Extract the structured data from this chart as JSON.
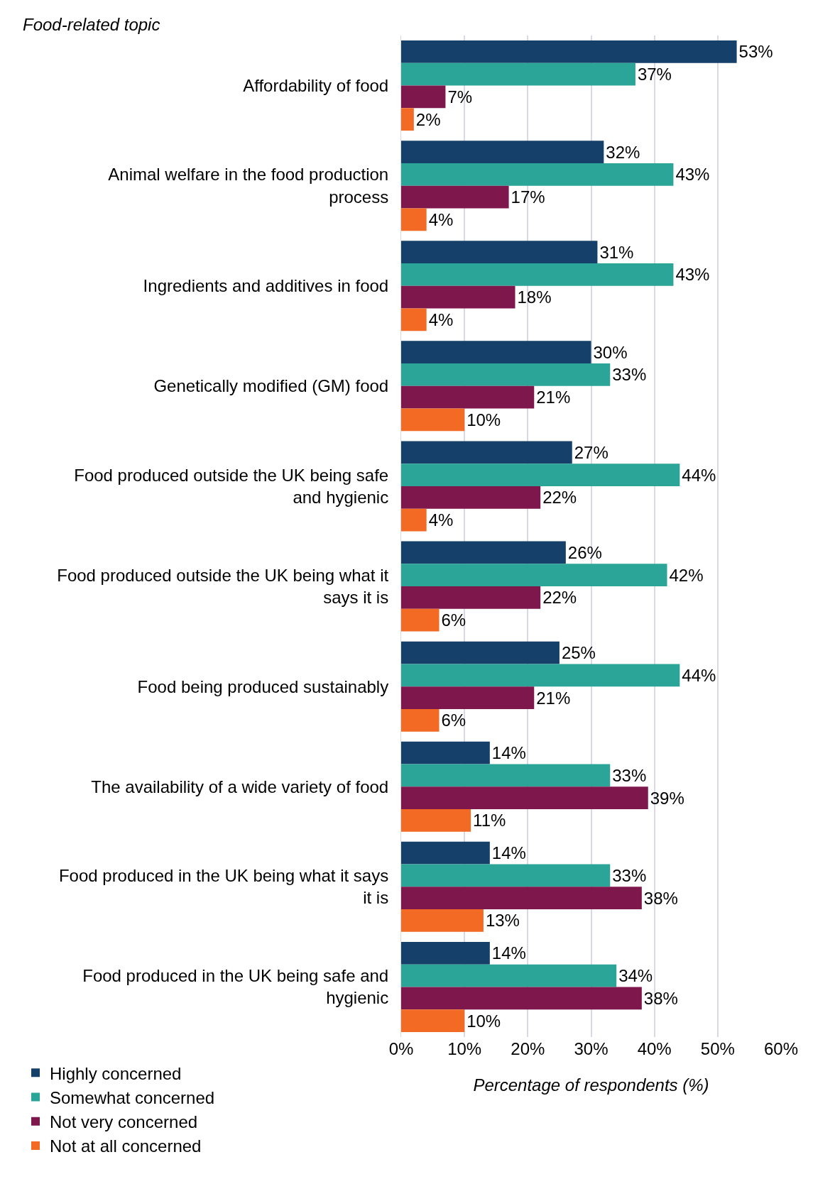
{
  "chart_data": {
    "type": "bar",
    "orientation": "horizontal",
    "ylabel": "Food-related topic",
    "xlabel": "Percentage of respondents (%)",
    "categories": [
      "Affordability of food",
      "Animal welfare in the food production process",
      "Ingredients and additives in food",
      "Genetically modified (GM) food",
      "Food produced outside the UK being safe and hygienic",
      "Food produced outside the UK being what it says it is",
      "Food being produced sustainably",
      "The availability of a wide variety of food",
      "Food produced in the UK being what it says it is",
      "Food produced in the UK being safe and hygienic"
    ],
    "series": [
      {
        "name": "Highly concerned",
        "color": "#15406a",
        "values": [
          53,
          32,
          31,
          30,
          27,
          26,
          25,
          14,
          14,
          14
        ],
        "value_labels": [
          "53%",
          "32%",
          "31%",
          "30%",
          "27%",
          "26%",
          "25%",
          "14%",
          "14%",
          "14%"
        ]
      },
      {
        "name": "Somewhat concerned",
        "color": "#2aa598",
        "values": [
          37,
          43,
          43,
          33,
          44,
          42,
          44,
          33,
          33,
          34
        ],
        "value_labels": [
          "37%",
          "43%",
          "43%",
          "33%",
          "44%",
          "42%",
          "44%",
          "33%",
          "33%",
          "34%"
        ]
      },
      {
        "name": "Not very concerned",
        "color": "#7e174c",
        "values": [
          7,
          17,
          18,
          21,
          22,
          22,
          21,
          39,
          38,
          38
        ],
        "value_labels": [
          "7%",
          "17%",
          "18%",
          "21%",
          "22%",
          "22%",
          "21%",
          "39%",
          "38%",
          "38%"
        ]
      },
      {
        "name": "Not at all concerned",
        "color": "#f26a23",
        "values": [
          2,
          4,
          4,
          10,
          4,
          6,
          6,
          11,
          13,
          10
        ],
        "value_labels": [
          "2%",
          "4%",
          "4%",
          "10%",
          "4%",
          "6%",
          "6%",
          "11%",
          "13%",
          "10%"
        ]
      }
    ],
    "xlim": [
      0,
      60
    ],
    "xticks": [
      {
        "value": 0,
        "label": "0%"
      },
      {
        "value": 10,
        "label": "10%"
      },
      {
        "value": 20,
        "label": "20%"
      },
      {
        "value": 30,
        "label": "30%"
      },
      {
        "value": 40,
        "label": "40%"
      },
      {
        "value": 50,
        "label": "50%"
      },
      {
        "value": 60,
        "label": "60%"
      }
    ],
    "grid": "x",
    "legend": "bottom left"
  }
}
